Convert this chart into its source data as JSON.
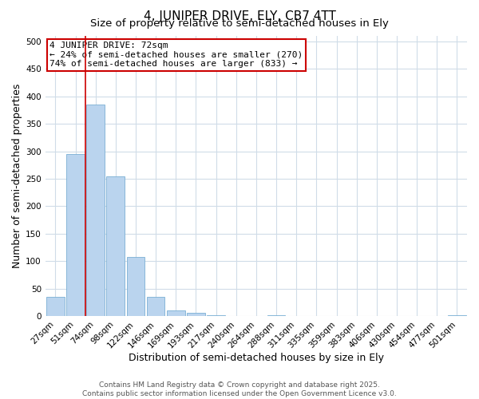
{
  "title": "4, JUNIPER DRIVE, ELY, CB7 4TT",
  "subtitle": "Size of property relative to semi-detached houses in Ely",
  "xlabel": "Distribution of semi-detached houses by size in Ely",
  "ylabel": "Number of semi-detached properties",
  "categories": [
    "27sqm",
    "51sqm",
    "74sqm",
    "98sqm",
    "122sqm",
    "146sqm",
    "169sqm",
    "193sqm",
    "217sqm",
    "240sqm",
    "264sqm",
    "288sqm",
    "311sqm",
    "335sqm",
    "359sqm",
    "383sqm",
    "406sqm",
    "430sqm",
    "454sqm",
    "477sqm",
    "501sqm"
  ],
  "values": [
    35,
    295,
    385,
    255,
    108,
    35,
    10,
    6,
    2,
    0,
    0,
    2,
    0,
    0,
    0,
    0,
    0,
    0,
    0,
    0,
    2
  ],
  "bar_color": "#bad4ee",
  "bar_edge_color": "#7aafd4",
  "vline_color": "#cc0000",
  "vline_x_index": 2,
  "ylim": [
    0,
    510
  ],
  "yticks": [
    0,
    50,
    100,
    150,
    200,
    250,
    300,
    350,
    400,
    450,
    500
  ],
  "annotation_title": "4 JUNIPER DRIVE: 72sqm",
  "annotation_line1": "← 24% of semi-detached houses are smaller (270)",
  "annotation_line2": "74% of semi-detached houses are larger (833) →",
  "annotation_box_color": "#cc0000",
  "footer_line1": "Contains HM Land Registry data © Crown copyright and database right 2025.",
  "footer_line2": "Contains public sector information licensed under the Open Government Licence v3.0.",
  "background_color": "#ffffff",
  "grid_color": "#d0dce8",
  "title_fontsize": 11,
  "subtitle_fontsize": 9.5,
  "axis_label_fontsize": 9,
  "tick_fontsize": 7.5,
  "annotation_fontsize": 8,
  "footer_fontsize": 6.5
}
